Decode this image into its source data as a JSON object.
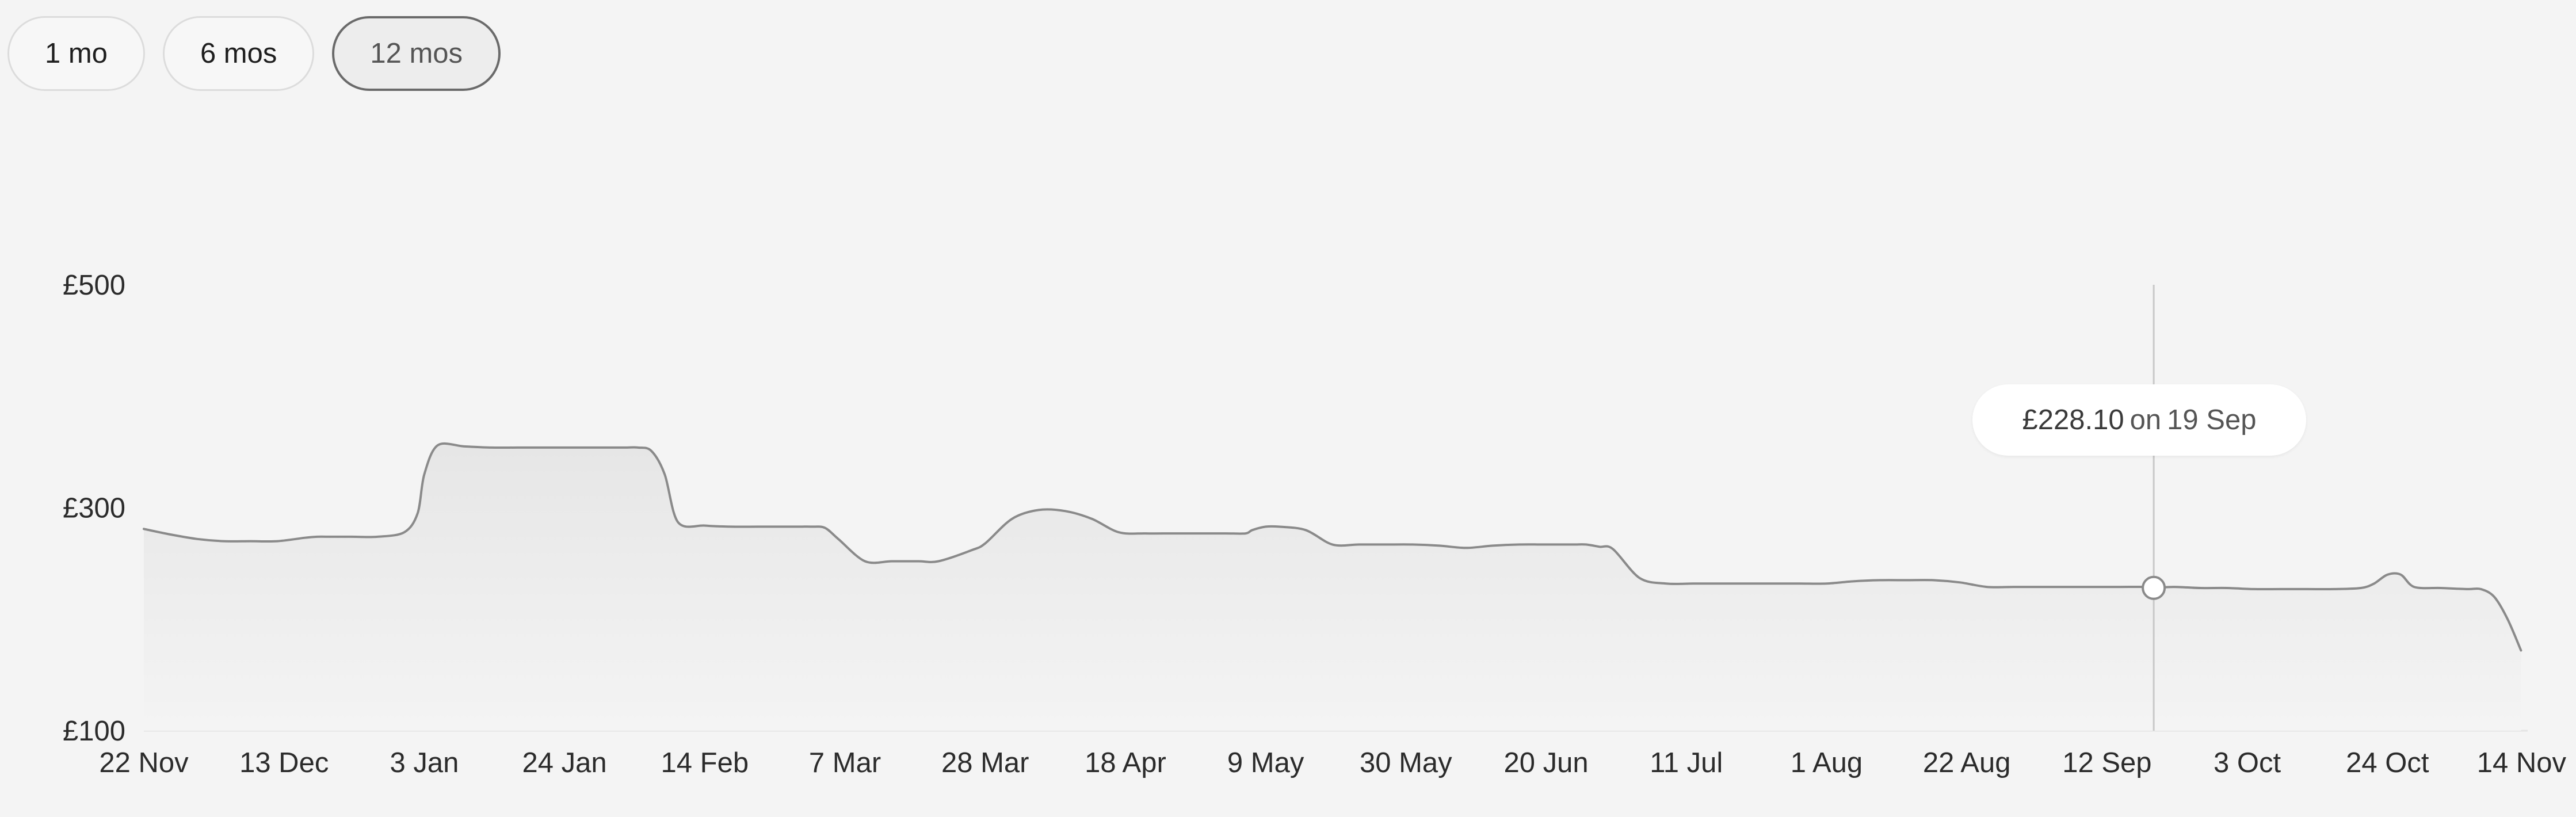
{
  "range_buttons": [
    {
      "label": "1 mo",
      "active": false
    },
    {
      "label": "6 mos",
      "active": false
    },
    {
      "label": "12 mos",
      "active": true
    }
  ],
  "tooltip": {
    "price": "£228.10",
    "on": "on",
    "date": "19 Sep"
  },
  "colors": {
    "line": "#8a8a8a",
    "guide": "#c8c8c8",
    "background": "#f4f4f4",
    "text": "#2b2b2b"
  },
  "chart_data": {
    "type": "area",
    "title": "",
    "xlabel": "",
    "ylabel": "",
    "ylim": [
      100,
      500
    ],
    "yticks": [
      {
        "value": 500,
        "label": "£500"
      },
      {
        "value": 300,
        "label": "£300"
      },
      {
        "value": 100,
        "label": "£100"
      }
    ],
    "xticks": [
      {
        "value": 0,
        "label": "22 Nov"
      },
      {
        "value": 21,
        "label": "13 Dec"
      },
      {
        "value": 42,
        "label": "3 Jan"
      },
      {
        "value": 63,
        "label": "24 Jan"
      },
      {
        "value": 84,
        "label": "14 Feb"
      },
      {
        "value": 105,
        "label": "7 Mar"
      },
      {
        "value": 126,
        "label": "28 Mar"
      },
      {
        "value": 147,
        "label": "18 Apr"
      },
      {
        "value": 168,
        "label": "9 May"
      },
      {
        "value": 189,
        "label": "30 May"
      },
      {
        "value": 210,
        "label": "20 Jun"
      },
      {
        "value": 231,
        "label": "11 Jul"
      },
      {
        "value": 252,
        "label": "1 Aug"
      },
      {
        "value": 273,
        "label": "22 Aug"
      },
      {
        "value": 294,
        "label": "12 Sep"
      },
      {
        "value": 315,
        "label": "3 Oct"
      },
      {
        "value": 336,
        "label": "24 Oct"
      },
      {
        "value": 357,
        "label": "14 Nov"
      }
    ],
    "xlim": [
      0,
      357
    ],
    "highlight": {
      "x": 301,
      "y": 228.1,
      "label": "£228.10 on 19 Sep"
    },
    "series": [
      {
        "x": [
          0,
          4,
          8,
          12,
          16,
          20,
          24,
          26,
          28,
          31,
          35,
          39,
          41,
          42,
          44,
          48,
          52,
          56,
          60,
          64,
          68,
          72,
          74,
          76,
          78,
          80,
          84,
          88,
          92,
          96,
          98,
          100,
          102,
          104,
          108,
          112,
          116,
          119,
          124,
          126,
          130,
          134,
          138,
          142,
          146,
          150,
          154,
          158,
          162,
          165,
          166,
          168,
          170,
          174,
          178,
          182,
          186,
          190,
          194,
          198,
          202,
          206,
          210,
          214,
          216,
          218,
          220,
          224,
          228,
          232,
          236,
          240,
          244,
          248,
          252,
          256,
          260,
          264,
          268,
          272,
          276,
          280,
          284,
          288,
          292,
          296,
          300,
          301,
          304,
          308,
          312,
          316,
          320,
          324,
          328,
          332,
          334,
          336,
          338,
          340,
          344,
          348,
          350,
          352,
          354,
          356
        ],
        "values": [
          281,
          276,
          272,
          270,
          270,
          270,
          273,
          274,
          274,
          274,
          274,
          278,
          295,
          330,
          356,
          355,
          354,
          354,
          354,
          354,
          354,
          354,
          354,
          351,
          330,
          287,
          284,
          283,
          283,
          283,
          283,
          283,
          282,
          272,
          252,
          252,
          252,
          252,
          262,
          268,
          290,
          298,
          297,
          290,
          278,
          277,
          277,
          277,
          277,
          277,
          280,
          283,
          283,
          280,
          267,
          267,
          267,
          267,
          266,
          264,
          266,
          267,
          267,
          267,
          267,
          265,
          263,
          237,
          232,
          232,
          232,
          232,
          232,
          232,
          232,
          234,
          235,
          235,
          235,
          233,
          229,
          229,
          229,
          229,
          229,
          229,
          229,
          228.1,
          229,
          228,
          228,
          227,
          227,
          227,
          227,
          228,
          232,
          240,
          240,
          229,
          228,
          227,
          227,
          220,
          200,
          172
        ]
      }
    ]
  }
}
